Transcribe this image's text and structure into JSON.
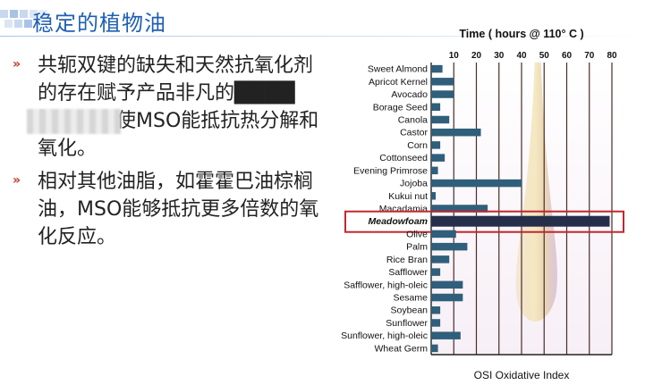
{
  "slide": {
    "title": "稳定的植物油",
    "bullets": [
      "共轭双键的缺失和天然抗氧化剂的存在赋予产品非凡的████性，从而使MSO能抵抗热分解和氧化。",
      "相对其他油脂，如霍霍巴油棕榈油，MSO能够抵抗更多倍数的氧化反应。"
    ],
    "bullet_marker": "»",
    "accent_color": "#1f5fb2",
    "marker_color": "#c0392b"
  },
  "chart_data": {
    "type": "bar",
    "orientation": "horizontal",
    "title": "Time ( hours @ 110° C )",
    "xlabel": "OSI Oxidative Index",
    "ylabel": "",
    "xlim": [
      0,
      80
    ],
    "xticks": [
      10,
      20,
      30,
      40,
      50,
      60,
      70,
      80
    ],
    "grid": true,
    "categories": [
      "Sweet Almond",
      "Apricot Kernel",
      "Avocado",
      "Borage Seed",
      "Canola",
      "Castor",
      "Corn",
      "Cottonseed",
      "Evening Primrose",
      "Jojoba",
      "Kukui nut",
      "Macadamia",
      "Meadowfoam",
      "Olive",
      "Palm",
      "Rice Bran",
      "Safflower",
      "Safflower, high-oleic",
      "Sesame",
      "Soybean",
      "Sunflower",
      "Sunflower, high-oleic",
      "Wheat Germ"
    ],
    "values": [
      5,
      10,
      10,
      4,
      8,
      22,
      4,
      6,
      3,
      40,
      2,
      25,
      79,
      11,
      16,
      8,
      4,
      14,
      14,
      4,
      4,
      13,
      3
    ],
    "highlight": "Meadowfoam",
    "bar_color": "#2f5f7a",
    "highlight_bar_color": "#262f4a",
    "highlight_box_color": "#c0272d"
  }
}
